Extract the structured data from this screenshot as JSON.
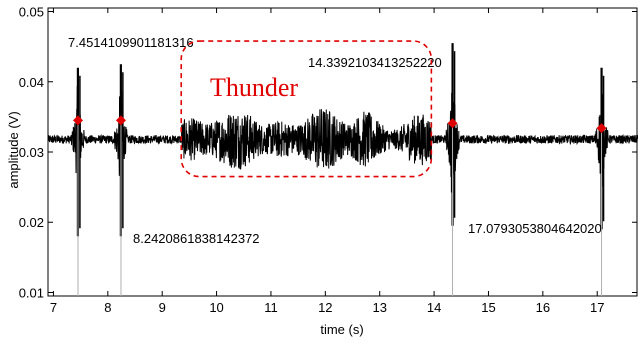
{
  "chart_data": {
    "type": "line",
    "xlabel": "time (s)",
    "ylabel": "amplitude (V)",
    "xlim": [
      6.9,
      17.75
    ],
    "ylim": [
      0.0095,
      0.0505
    ],
    "xticks": [
      7,
      8,
      9,
      10,
      11,
      12,
      13,
      14,
      15,
      16,
      17
    ],
    "yticks": [
      0.01,
      0.02,
      0.03,
      0.04,
      0.05
    ],
    "ytick_labels": [
      "0.01",
      "0.02",
      "0.03",
      "0.04",
      "0.05"
    ],
    "grid": false,
    "line_color": "#000000",
    "baseline": 0.0318,
    "markers": [
      {
        "x": 7.451410990118132,
        "y": 0.0345,
        "label": "7.4514109901181316",
        "color": "#e00000"
      },
      {
        "x": 8.242086183814237,
        "y": 0.0345,
        "label": "8.2420861838142372",
        "color": "#e00000"
      },
      {
        "x": 14.339210341325222,
        "y": 0.0341,
        "label": "14.3392103413252220",
        "color": "#e00000"
      },
      {
        "x": 17.079305380464202,
        "y": 0.0334,
        "label": "17.0793053804642020",
        "color": "#e00000"
      }
    ],
    "spikes": [
      {
        "x": 7.45,
        "max": 0.042,
        "min": 0.018
      },
      {
        "x": 8.24,
        "max": 0.0425,
        "min": 0.018
      },
      {
        "x": 14.34,
        "max": 0.0455,
        "min": 0.0195
      },
      {
        "x": 17.08,
        "max": 0.042,
        "min": 0.019
      }
    ],
    "region": {
      "x_start": 9.35,
      "x_end": 13.95,
      "y_top": 0.0458,
      "y_bottom": 0.0265,
      "label": "Thunder",
      "color": "#e00000"
    }
  }
}
